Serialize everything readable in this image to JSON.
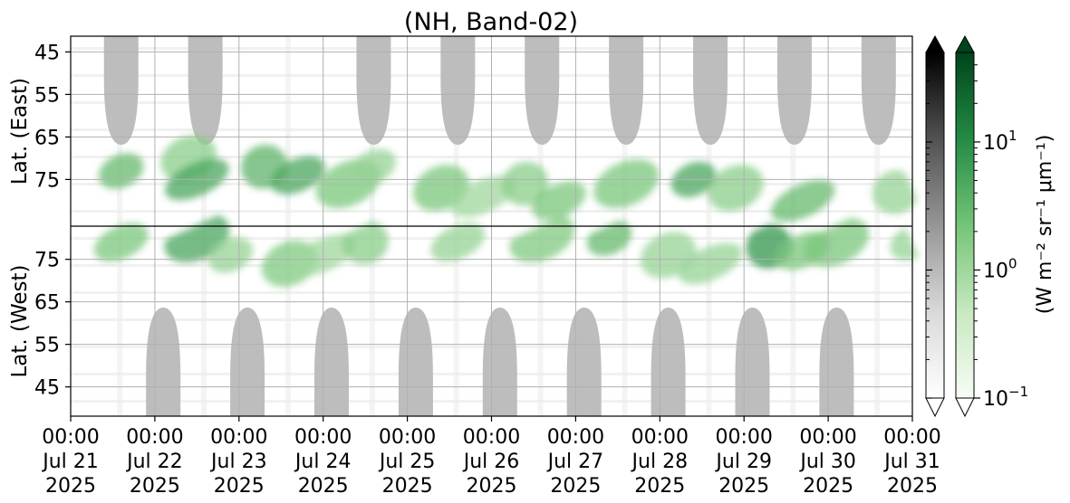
{
  "chart_data": {
    "type": "heatmap",
    "title": "(NH, Band-02)",
    "x_ticks": [
      {
        "date": "2025-07-21T00:00",
        "lines": [
          "00:00",
          "Jul 21",
          "2025"
        ]
      },
      {
        "date": "2025-07-22T00:00",
        "lines": [
          "00:00",
          "Jul 22",
          "2025"
        ]
      },
      {
        "date": "2025-07-23T00:00",
        "lines": [
          "00:00",
          "Jul 23",
          "2025"
        ]
      },
      {
        "date": "2025-07-24T00:00",
        "lines": [
          "00:00",
          "Jul 24",
          "2025"
        ]
      },
      {
        "date": "2025-07-25T00:00",
        "lines": [
          "00:00",
          "Jul 25",
          "2025"
        ]
      },
      {
        "date": "2025-07-26T00:00",
        "lines": [
          "00:00",
          "Jul 26",
          "2025"
        ]
      },
      {
        "date": "2025-07-27T00:00",
        "lines": [
          "00:00",
          "Jul 27",
          "2025"
        ]
      },
      {
        "date": "2025-07-28T00:00",
        "lines": [
          "00:00",
          "Jul 28",
          "2025"
        ]
      },
      {
        "date": "2025-07-29T00:00",
        "lines": [
          "00:00",
          "Jul 29",
          "2025"
        ]
      },
      {
        "date": "2025-07-30T00:00",
        "lines": [
          "00:00",
          "Jul 30",
          "2025"
        ]
      },
      {
        "date": "2025-07-31T00:00",
        "lines": [
          "00:00",
          "Jul 31",
          "2025"
        ]
      }
    ],
    "xlim": [
      "2025-07-21T00:00",
      "2025-07-31T00:00"
    ],
    "panels": [
      {
        "ylabel": "Lat. (East)",
        "yticks": [
          "45",
          "55",
          "65",
          "75"
        ]
      },
      {
        "ylabel": "Lat. (West)",
        "yticks": [
          "75",
          "65",
          "55",
          "45"
        ]
      }
    ],
    "grid": true,
    "colorbars": [
      {
        "name": "gray",
        "extend": "both",
        "colors": [
          "#ffffff",
          "#d9d9d9",
          "#969696",
          "#525252",
          "#000000"
        ]
      },
      {
        "name": "green",
        "extend": "both",
        "colors": [
          "#f7fcf5",
          "#c7e9c0",
          "#74c476",
          "#238b45",
          "#00441b"
        ]
      }
    ],
    "colorbar_scale": "log",
    "colorbar_range": [
      0.1,
      50
    ],
    "colorbar_ticks": [
      {
        "value": 0.1,
        "base": "10",
        "exp": "−1"
      },
      {
        "value": 1,
        "base": "10",
        "exp": "0"
      },
      {
        "value": 10,
        "base": "10",
        "exp": "1"
      }
    ],
    "colorbar_label": "(W m⁻² sr⁻¹ μm⁻¹)",
    "masked_color": "#bdbdbd",
    "masked_regions": {
      "east": [
        0.6,
        1.6,
        3.6,
        4.6,
        5.6,
        6.6,
        7.6,
        8.6,
        9.6
      ],
      "west": [
        1.1,
        2.1,
        3.1,
        4.1,
        5.1,
        6.1,
        7.1,
        8.1,
        9.1
      ]
    },
    "green_clusters": [
      {
        "panel": "east",
        "day": 0.6,
        "lat": 73,
        "val": 3.0
      },
      {
        "panel": "east",
        "day": 1.4,
        "lat": 70,
        "val": 1.5
      },
      {
        "panel": "east",
        "day": 1.5,
        "lat": 75,
        "val": 5.0
      },
      {
        "panel": "east",
        "day": 2.3,
        "lat": 72,
        "val": 3.5
      },
      {
        "panel": "east",
        "day": 2.7,
        "lat": 74,
        "val": 5.0
      },
      {
        "panel": "east",
        "day": 3.3,
        "lat": 76,
        "val": 2.0
      },
      {
        "panel": "east",
        "day": 3.6,
        "lat": 72,
        "val": 1.2
      },
      {
        "panel": "east",
        "day": 4.4,
        "lat": 77,
        "val": 2.0
      },
      {
        "panel": "east",
        "day": 4.9,
        "lat": 79,
        "val": 1.0
      },
      {
        "panel": "east",
        "day": 5.4,
        "lat": 76,
        "val": 1.5
      },
      {
        "panel": "east",
        "day": 5.8,
        "lat": 80,
        "val": 2.0
      },
      {
        "panel": "east",
        "day": 6.6,
        "lat": 76,
        "val": 2.0
      },
      {
        "panel": "east",
        "day": 7.4,
        "lat": 75,
        "val": 5.0
      },
      {
        "panel": "east",
        "day": 7.9,
        "lat": 77,
        "val": 1.5
      },
      {
        "panel": "east",
        "day": 8.7,
        "lat": 80,
        "val": 3.0
      },
      {
        "panel": "east",
        "day": 9.8,
        "lat": 78,
        "val": 1.2
      },
      {
        "panel": "west",
        "day": 0.6,
        "lat": 79,
        "val": 2.0
      },
      {
        "panel": "west",
        "day": 1.5,
        "lat": 80,
        "val": 5.0
      },
      {
        "panel": "west",
        "day": 1.9,
        "lat": 76,
        "val": 1.2
      },
      {
        "panel": "west",
        "day": 2.6,
        "lat": 74,
        "val": 1.8
      },
      {
        "panel": "west",
        "day": 3.0,
        "lat": 76,
        "val": 1.0
      },
      {
        "panel": "west",
        "day": 3.5,
        "lat": 79,
        "val": 1.5
      },
      {
        "panel": "west",
        "day": 4.6,
        "lat": 79,
        "val": 1.2
      },
      {
        "panel": "west",
        "day": 5.6,
        "lat": 80,
        "val": 1.8
      },
      {
        "panel": "west",
        "day": 6.4,
        "lat": 80,
        "val": 3.0
      },
      {
        "panel": "west",
        "day": 7.1,
        "lat": 76,
        "val": 1.2
      },
      {
        "panel": "west",
        "day": 7.6,
        "lat": 74,
        "val": 1.2
      },
      {
        "panel": "west",
        "day": 8.3,
        "lat": 78,
        "val": 8.0
      },
      {
        "panel": "west",
        "day": 8.7,
        "lat": 77,
        "val": 2.0
      },
      {
        "panel": "west",
        "day": 9.1,
        "lat": 79,
        "val": 2.0
      },
      {
        "panel": "west",
        "day": 10.0,
        "lat": 79,
        "val": 1.2
      }
    ]
  }
}
